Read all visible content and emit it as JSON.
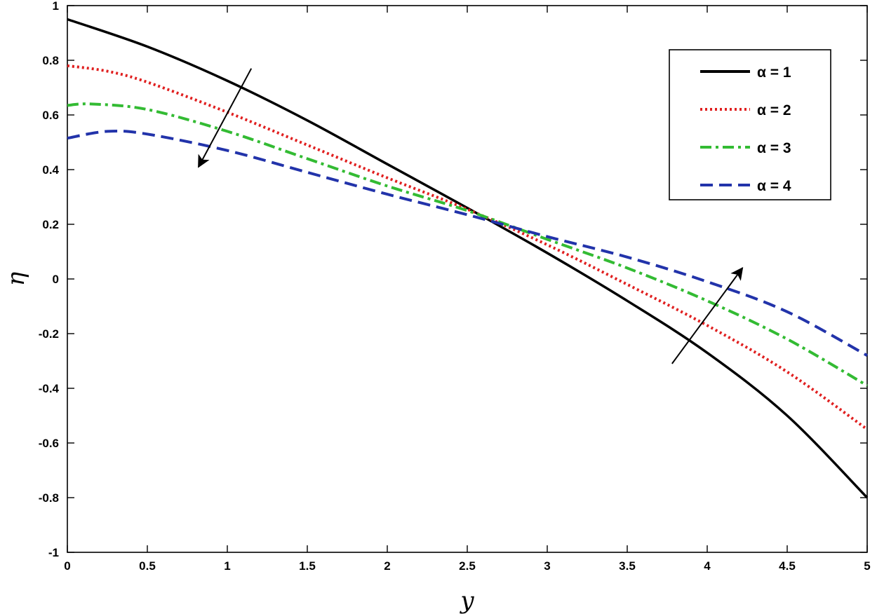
{
  "chart_data": {
    "type": "line",
    "title": "",
    "xlabel": "y",
    "ylabel": "η",
    "xlim": [
      0,
      5
    ],
    "ylim": [
      -1,
      1
    ],
    "xticks": [
      0,
      0.5,
      1,
      1.5,
      2,
      2.5,
      3,
      3.5,
      4,
      4.5,
      5
    ],
    "yticks": [
      -1,
      -0.8,
      -0.6,
      -0.4,
      -0.2,
      0,
      0.2,
      0.4,
      0.6,
      0.8,
      1
    ],
    "xtick_labels": [
      "0",
      "0.5",
      "1",
      "1.5",
      "2",
      "2.5",
      "3",
      "3.5",
      "4",
      "4.5",
      "5"
    ],
    "ytick_labels": [
      "-1",
      "-0.8",
      "-0.6",
      "-0.4",
      "-0.2",
      "0",
      "0.2",
      "0.4",
      "0.6",
      "0.8",
      "1"
    ],
    "grid": false,
    "legend_position": "top-right",
    "series": [
      {
        "name": "α = 1",
        "color": "#000000",
        "style": "solid",
        "x": [
          0,
          0.5,
          1,
          1.5,
          2,
          2.5,
          3,
          3.5,
          4,
          4.5,
          5
        ],
        "y": [
          0.95,
          0.85,
          0.725,
          0.58,
          0.42,
          0.26,
          0.095,
          -0.08,
          -0.27,
          -0.5,
          -0.8
        ]
      },
      {
        "name": "α = 2",
        "color": "#e02020",
        "style": "dotted",
        "x": [
          0,
          0.25,
          0.5,
          1,
          1.5,
          2,
          2.5,
          3,
          3.5,
          4,
          4.5,
          5
        ],
        "y": [
          0.78,
          0.76,
          0.72,
          0.61,
          0.49,
          0.37,
          0.255,
          0.125,
          -0.02,
          -0.17,
          -0.34,
          -0.55
        ]
      },
      {
        "name": "α = 3",
        "color": "#33bb33",
        "style": "dashdot",
        "x": [
          0,
          0.15,
          0.5,
          1,
          1.5,
          2,
          2.5,
          3,
          3.5,
          4,
          4.5,
          5
        ],
        "y": [
          0.635,
          0.64,
          0.62,
          0.54,
          0.44,
          0.34,
          0.25,
          0.145,
          0.04,
          -0.08,
          -0.22,
          -0.39
        ]
      },
      {
        "name": "α = 4",
        "color": "#2233aa",
        "style": "dashed",
        "x": [
          0,
          0.25,
          0.5,
          1,
          1.5,
          2,
          2.5,
          3,
          3.5,
          4,
          4.5,
          5
        ],
        "y": [
          0.515,
          0.54,
          0.53,
          0.47,
          0.39,
          0.31,
          0.235,
          0.155,
          0.08,
          -0.01,
          -0.12,
          -0.28
        ]
      }
    ],
    "annotations": [
      {
        "type": "arrow",
        "from": [
          1.15,
          0.77
        ],
        "to": [
          0.82,
          0.41
        ]
      },
      {
        "type": "arrow",
        "from": [
          3.78,
          -0.31
        ],
        "to": [
          4.22,
          0.04
        ]
      }
    ]
  }
}
